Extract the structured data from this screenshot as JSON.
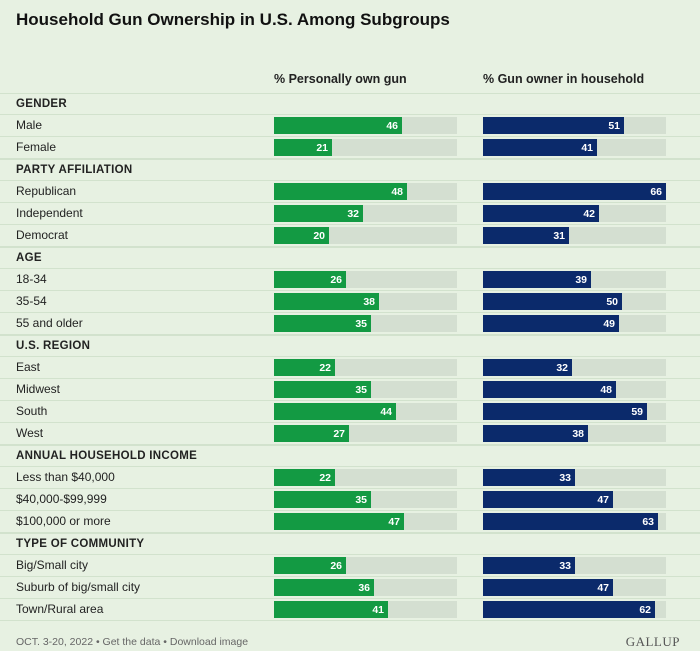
{
  "title": "Household Gun Ownership in U.S. Among Subgroups",
  "footer": "OCT. 3-20, 2022 • Get the data • Download image",
  "logo": "GALLUP",
  "colors": {
    "own": "#139a43",
    "household": "#0b2a6b",
    "track": "#d4dfd1",
    "background": "#e7f1e2"
  },
  "chart_data": {
    "type": "bar",
    "title": "Household Gun Ownership in U.S. Among Subgroups",
    "xlim": [
      0,
      66
    ],
    "series": [
      {
        "name": "% Personally own gun"
      },
      {
        "name": "% Gun owner in household"
      }
    ],
    "groups": [
      {
        "name": "GENDER",
        "items": [
          {
            "label": "Male",
            "own": 46,
            "household": 51
          },
          {
            "label": "Female",
            "own": 21,
            "household": 41
          }
        ]
      },
      {
        "name": "PARTY AFFILIATION",
        "items": [
          {
            "label": "Republican",
            "own": 48,
            "household": 66
          },
          {
            "label": "Independent",
            "own": 32,
            "household": 42
          },
          {
            "label": "Democrat",
            "own": 20,
            "household": 31
          }
        ]
      },
      {
        "name": "AGE",
        "items": [
          {
            "label": "18-34",
            "own": 26,
            "household": 39
          },
          {
            "label": "35-54",
            "own": 38,
            "household": 50
          },
          {
            "label": "55 and older",
            "own": 35,
            "household": 49
          }
        ]
      },
      {
        "name": "U.S. REGION",
        "items": [
          {
            "label": "East",
            "own": 22,
            "household": 32
          },
          {
            "label": "Midwest",
            "own": 35,
            "household": 48
          },
          {
            "label": "South",
            "own": 44,
            "household": 59
          },
          {
            "label": "West",
            "own": 27,
            "household": 38
          }
        ]
      },
      {
        "name": "ANNUAL HOUSEHOLD INCOME",
        "items": [
          {
            "label": "Less than $40,000",
            "own": 22,
            "household": 33
          },
          {
            "label": "$40,000-$99,999",
            "own": 35,
            "household": 47
          },
          {
            "label": "$100,000 or more",
            "own": 47,
            "household": 63
          }
        ]
      },
      {
        "name": "TYPE OF COMMUNITY",
        "items": [
          {
            "label": "Big/Small city",
            "own": 26,
            "household": 33
          },
          {
            "label": "Suburb of big/small city",
            "own": 36,
            "household": 47
          },
          {
            "label": "Town/Rural area",
            "own": 41,
            "household": 62
          }
        ]
      }
    ]
  }
}
